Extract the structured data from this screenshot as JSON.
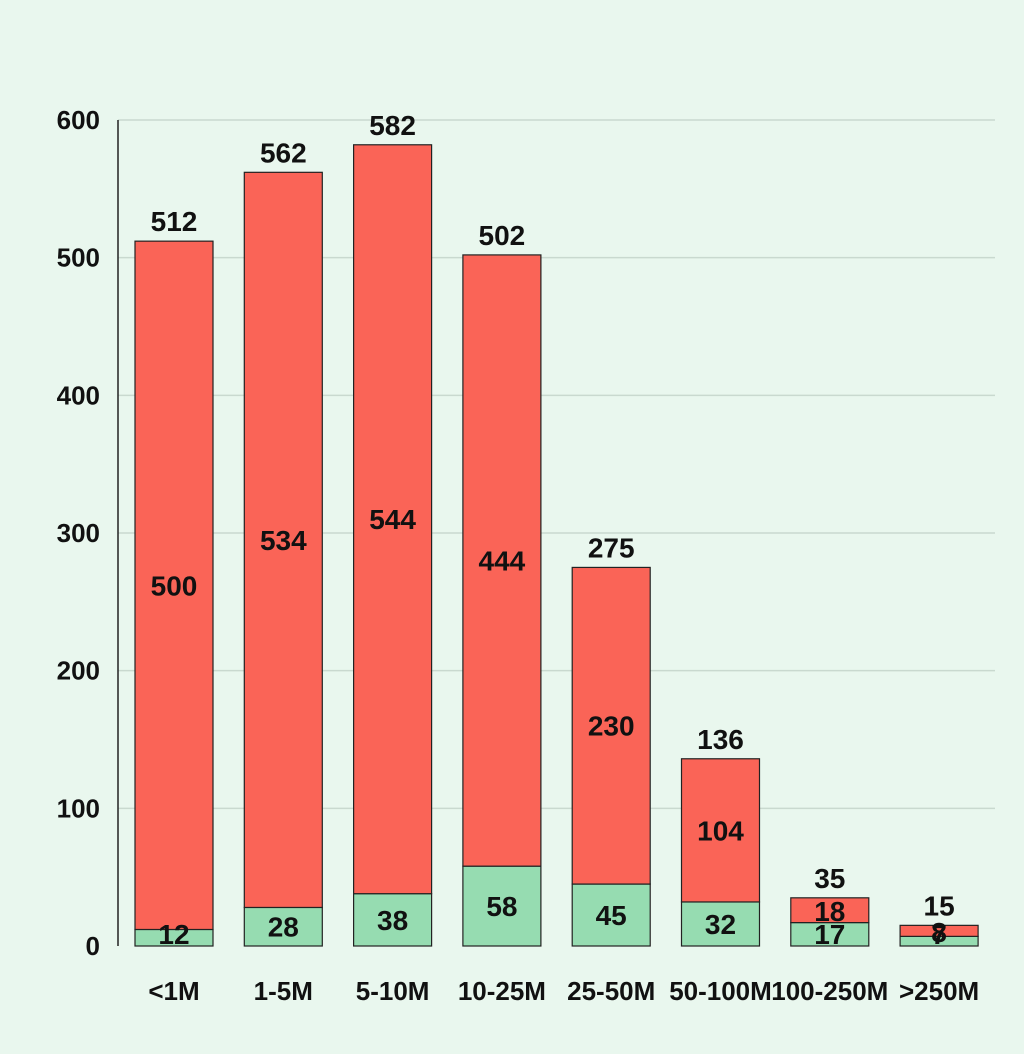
{
  "chart_data": {
    "type": "bar",
    "stacked": true,
    "title": "",
    "xlabel": "",
    "ylabel": "",
    "ylim": [
      0,
      600
    ],
    "yticks": [
      0,
      100,
      200,
      300,
      400,
      500,
      600
    ],
    "grid": true,
    "legend": "none",
    "categories": [
      "<1M",
      "1-5M",
      "5-10M",
      "10-25M",
      "25-50M",
      "50-100M",
      "100-250M",
      ">250M"
    ],
    "series": [
      {
        "values": [
          12,
          28,
          38,
          58,
          45,
          32,
          17,
          7
        ],
        "color": "#96dcb1"
      },
      {
        "values": [
          500,
          534,
          544,
          444,
          230,
          104,
          18,
          8
        ],
        "color": "#fa6457"
      }
    ],
    "totals": [
      512,
      562,
      582,
      502,
      275,
      136,
      35,
      15
    ]
  }
}
